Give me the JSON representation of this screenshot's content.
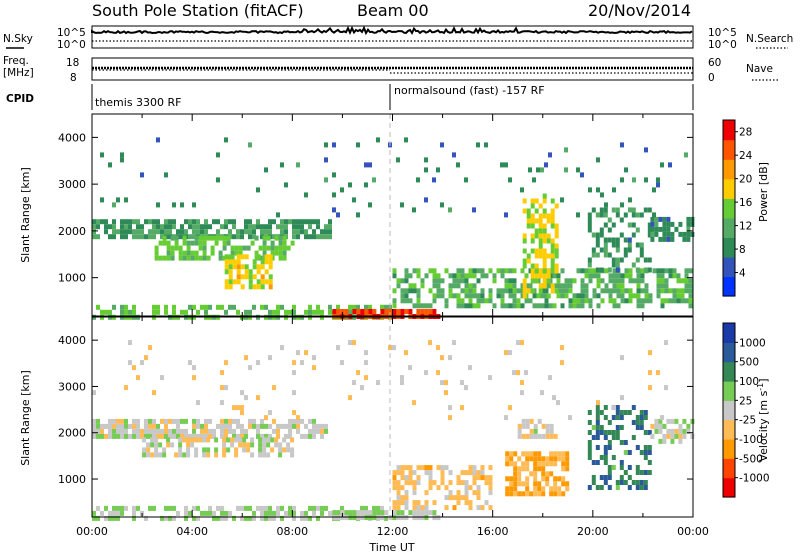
{
  "header": {
    "station": "South Pole Station (fitACF)",
    "beam": "Beam 00",
    "date": "20/Nov/2014"
  },
  "noise_panel": {
    "left_label": "N.Sky",
    "right_label": "N.Search",
    "left_ticks": [
      "10^5",
      "10^0"
    ],
    "right_ticks": [
      "10^5",
      "10^0"
    ]
  },
  "freq_panel": {
    "left_label_1": "Freq.",
    "left_label_2": "[MHz]",
    "right_label": "Nave",
    "left_ticks": [
      "18",
      "8"
    ],
    "right_ticks": [
      "60",
      "0"
    ]
  },
  "cpid": {
    "label": "CPID",
    "segments": [
      {
        "name": "themis 3300 RF",
        "start_hour": 0
      },
      {
        "name": "normalsound (fast) -157 RF",
        "start_hour": 12
      }
    ]
  },
  "x_axis": {
    "label": "Time UT",
    "ticks": [
      "00:00",
      "04:00",
      "08:00",
      "12:00",
      "16:00",
      "20:00",
      "00:00"
    ]
  },
  "colors": {
    "power": [
      "#0033ff",
      "#3355bb",
      "#2e8b57",
      "#55aa66",
      "#66cc33",
      "#ffcc00",
      "#ff9900",
      "#ff5500",
      "#ee0000"
    ],
    "velocity": [
      "#ee0000",
      "#ff4400",
      "#ff9900",
      "#ffbb55",
      "#c8c8c8",
      "#77cc55",
      "#338855",
      "#2a5a9a",
      "#1a3aaa"
    ]
  },
  "chart_data": [
    {
      "type": "heatmap",
      "title": "",
      "xlabel": "Time UT",
      "ylabel": "Slant Range [km]",
      "xlim": [
        0,
        24
      ],
      "ylim": [
        180,
        4500
      ],
      "y_ticks": [
        1000,
        2000,
        3000,
        4000
      ],
      "colorbar": {
        "label": "Power [dB]",
        "ticks": [
          "4",
          "8",
          "12",
          "16",
          "20",
          "24",
          "28"
        ],
        "range": [
          0,
          30
        ]
      },
      "regions": [
        {
          "t0": 0.0,
          "t1": 9.6,
          "r0": 1880,
          "r1": 2250,
          "level": 10,
          "density": 0.75
        },
        {
          "t0": 2.5,
          "t1": 8.0,
          "r0": 1450,
          "r1": 1900,
          "level": 14,
          "density": 0.6
        },
        {
          "t0": 5.3,
          "t1": 7.2,
          "r0": 800,
          "r1": 1500,
          "level": 18,
          "density": 0.55
        },
        {
          "t0": 0.0,
          "t1": 12.0,
          "r0": 180,
          "r1": 420,
          "level": 14,
          "density": 0.55
        },
        {
          "t0": 9.6,
          "t1": 13.8,
          "r0": 180,
          "r1": 330,
          "level": 27,
          "density": 0.9
        },
        {
          "t0": 12.0,
          "t1": 24.0,
          "r0": 400,
          "r1": 1200,
          "level": 12,
          "density": 0.6
        },
        {
          "t0": 17.2,
          "t1": 18.6,
          "r0": 600,
          "r1": 2800,
          "level": 17,
          "density": 0.6
        },
        {
          "t0": 19.8,
          "t1": 22.3,
          "r0": 1100,
          "r1": 2500,
          "level": 9,
          "density": 0.45
        },
        {
          "t0": 22.3,
          "t1": 24.0,
          "r0": 1800,
          "r1": 2300,
          "level": 8,
          "density": 0.6
        },
        {
          "t0": 0.0,
          "t1": 24.0,
          "r0": 2300,
          "r1": 4000,
          "level": 8,
          "density": 0.04
        }
      ]
    },
    {
      "type": "heatmap",
      "title": "",
      "xlabel": "Time UT",
      "ylabel": "Slant Range [km]",
      "xlim": [
        0,
        24
      ],
      "ylim": [
        180,
        4500
      ],
      "y_ticks": [
        1000,
        2000,
        3000,
        4000
      ],
      "colorbar": {
        "label": "Velocity [m s^-1]",
        "ticks": [
          "-1000",
          "-500",
          "-100",
          "-25",
          "25",
          "100",
          "500",
          "1000"
        ],
        "range": [
          -1200,
          1200
        ]
      },
      "regions": [
        {
          "t0": 0.0,
          "t1": 9.6,
          "r0": 1850,
          "r1": 2300,
          "level": 0,
          "density": 0.75
        },
        {
          "t0": 2.0,
          "t1": 8.0,
          "r0": 1450,
          "r1": 1900,
          "level": 0,
          "density": 0.6
        },
        {
          "t0": 0.0,
          "t1": 12.0,
          "r0": 180,
          "r1": 420,
          "level": 150,
          "density": 0.55
        },
        {
          "t0": 9.6,
          "t1": 13.8,
          "r0": 180,
          "r1": 330,
          "level": 120,
          "density": 0.85
        },
        {
          "t0": 12.0,
          "t1": 16.0,
          "r0": 400,
          "r1": 1300,
          "level": -200,
          "density": 0.45
        },
        {
          "t0": 16.5,
          "t1": 19.0,
          "r0": 700,
          "r1": 1600,
          "level": -400,
          "density": 0.7
        },
        {
          "t0": 17.0,
          "t1": 18.6,
          "r0": 1900,
          "r1": 2300,
          "level": 0,
          "density": 0.6
        },
        {
          "t0": 19.8,
          "t1": 22.3,
          "r0": 800,
          "r1": 2600,
          "level": 600,
          "density": 0.45
        },
        {
          "t0": 22.3,
          "t1": 24.0,
          "r0": 1800,
          "r1": 2300,
          "level": 0,
          "density": 0.6
        },
        {
          "t0": 0.0,
          "t1": 24.0,
          "r0": 2300,
          "r1": 4000,
          "level": -150,
          "density": 0.04
        }
      ]
    }
  ]
}
